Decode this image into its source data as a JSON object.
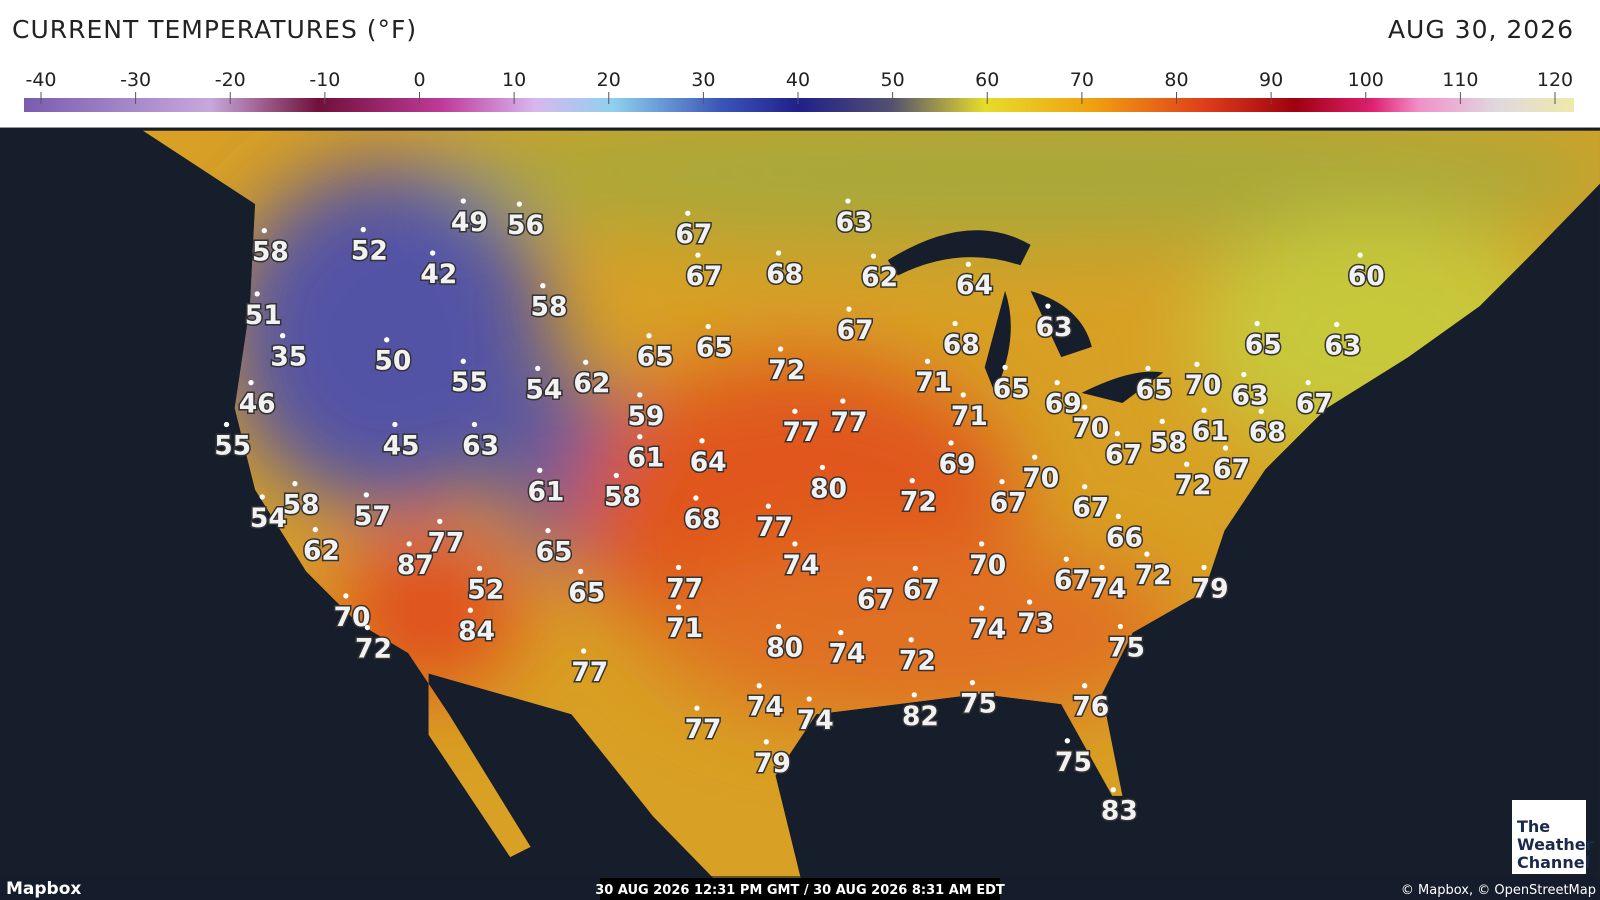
{
  "header": {
    "title": "CURRENT TEMPERATURES (°F)",
    "date": "AUG 30, 2026"
  },
  "legend": {
    "ticks": [
      -40,
      -30,
      -20,
      -10,
      0,
      10,
      20,
      30,
      40,
      50,
      60,
      70,
      80,
      90,
      100,
      110,
      120
    ]
  },
  "map": {
    "temperatures": [
      58,
      52,
      49,
      56,
      42,
      51,
      35,
      50,
      46,
      55,
      45,
      55,
      63,
      58,
      54,
      62,
      54,
      58,
      57,
      62,
      87,
      77,
      70,
      72,
      52,
      84,
      61,
      58,
      65,
      65,
      67,
      67,
      68,
      63,
      62,
      64,
      67,
      65,
      65,
      72,
      59,
      61,
      64,
      77,
      77,
      68,
      77,
      80,
      74,
      77,
      71,
      80,
      74,
      77,
      74,
      74,
      77,
      79,
      68,
      63,
      71,
      65,
      71,
      69,
      72,
      70,
      67,
      69,
      70,
      67,
      67,
      66,
      70,
      67,
      67,
      72,
      74,
      73,
      67,
      74,
      72,
      79,
      75,
      82,
      75,
      76,
      75,
      83,
      60,
      65,
      63,
      65,
      70,
      63,
      67,
      58,
      61,
      68,
      72,
      67
    ]
  },
  "footer": {
    "attribution_left": "Mapbox",
    "timestamp": "30 AUG 2026 12:31 PM GMT / 30 AUG 2026 8:31 AM EDT",
    "attribution_right": "© Mapbox, © OpenStreetMap"
  },
  "logo": {
    "lines": [
      "The",
      "Weather",
      "Channel"
    ]
  }
}
